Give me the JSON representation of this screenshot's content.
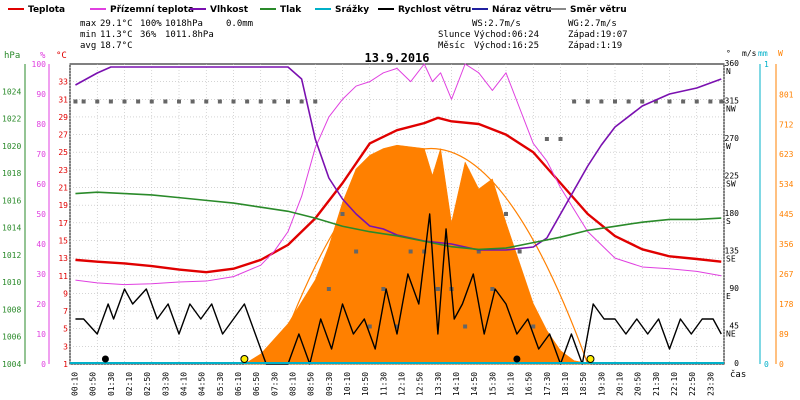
{
  "legend": [
    {
      "label": "Teplota",
      "color": "#e00000"
    },
    {
      "label": "Přízemní teplota",
      "color": "#e040e0"
    },
    {
      "label": "Vlhkost",
      "color": "#7a10b0"
    },
    {
      "label": "Tlak",
      "color": "#2a8a2a"
    },
    {
      "label": "Srážky",
      "color": "#00b0c8"
    },
    {
      "label": "Rychlost větru",
      "color": "#000000"
    },
    {
      "label": "Náraz větru",
      "color": "#2020a0"
    },
    {
      "label": "Směr větru",
      "color": "#888888"
    }
  ],
  "stats": {
    "max_label": "max",
    "max_temp": "29.1°C",
    "max_hum": "100%",
    "max_press": "1018hPa",
    "max_rain": "0.0mm",
    "min_label": "min",
    "min_temp": "11.3°C",
    "min_hum": "36%",
    "min_press": "1011.8hPa",
    "avg_label": "avg",
    "avg_temp": "18.7°C"
  },
  "wind": {
    "ws": "WS:2.7m/s",
    "wg": "WG:2.7m/s"
  },
  "sun": {
    "label": "Slunce",
    "rise": "Východ:06:24",
    "set": "Západ:19:07"
  },
  "moon": {
    "label": "Měsíc",
    "rise": "Východ:16:25",
    "set": "Západ:1:19"
  },
  "chart_data": {
    "type": "line",
    "title": "13.9.2016",
    "xlabel": "čas",
    "x_ticks": [
      "00:10",
      "00:50",
      "01:30",
      "02:10",
      "02:50",
      "03:30",
      "04:10",
      "04:50",
      "05:30",
      "06:10",
      "06:50",
      "07:30",
      "08:10",
      "08:50",
      "09:30",
      "10:10",
      "10:50",
      "11:30",
      "12:10",
      "12:50",
      "13:30",
      "14:10",
      "14:50",
      "15:30",
      "16:10",
      "16:50",
      "17:30",
      "18:10",
      "18:50",
      "19:30",
      "20:10",
      "20:50",
      "21:30",
      "22:10",
      "22:50",
      "23:30"
    ],
    "axes": {
      "pressure": {
        "label": "hPa",
        "ylim": [
          1004,
          1026
        ],
        "ticks": [
          "1004",
          "1006",
          "1008",
          "1010",
          "1012",
          "1014",
          "1016",
          "1018",
          "1020",
          "1022",
          "1024"
        ]
      },
      "humidity": {
        "label": "%",
        "ylim": [
          0,
          100
        ],
        "ticks": [
          "0",
          "10",
          "20",
          "30",
          "40",
          "50",
          "60",
          "70",
          "80",
          "90",
          "100"
        ]
      },
      "temperature": {
        "label": "°C",
        "ylim": [
          1,
          35
        ],
        "ticks": [
          "1",
          "3",
          "5",
          "7",
          "9",
          "11",
          "13",
          "15",
          "17",
          "19",
          "21",
          "23",
          "25",
          "27",
          "29",
          "31",
          "33"
        ]
      },
      "direction": {
        "label": "°",
        "ylim": [
          0,
          360
        ],
        "ticks": [
          "0",
          "45",
          "90",
          "135",
          "180",
          "225",
          "270",
          "315",
          "360"
        ],
        "cardinals": [
          "",
          "NE",
          "E",
          "SE",
          "S",
          "SW",
          "W",
          "NW",
          "N"
        ]
      },
      "wind": {
        "label": "m/s",
        "ylim": [
          0,
          1
        ],
        "ticks": [
          "0",
          "1"
        ]
      },
      "rain": {
        "label": "mm",
        "ticks": [
          "0",
          "1"
        ]
      },
      "solar": {
        "label": "W",
        "ylim": [
          0,
          891
        ],
        "ticks": [
          "0",
          "89",
          "178",
          "267",
          "356",
          "445",
          "534",
          "623",
          "712",
          "801"
        ]
      }
    },
    "series": [
      {
        "name": "Teplota",
        "axis": "temperature",
        "x": [
          0.2,
          1,
          2,
          3,
          4,
          5,
          6,
          7,
          8,
          9,
          10,
          11,
          12,
          13,
          13.5,
          14,
          15,
          16,
          17,
          18,
          19,
          20,
          21,
          22,
          23,
          23.9
        ],
        "values": [
          12.8,
          12.6,
          12.4,
          12.1,
          11.7,
          11.4,
          11.8,
          12.8,
          14.5,
          17.5,
          21.5,
          26,
          27.5,
          28.3,
          28.9,
          28.5,
          28.2,
          27,
          25,
          21.5,
          18,
          15.5,
          14,
          13.2,
          12.9,
          12.6
        ]
      },
      {
        "name": "Přízemní teplota",
        "axis": "temperature",
        "x": [
          0.2,
          1,
          2,
          3,
          4,
          5,
          6,
          7,
          7.5,
          8,
          8.5,
          9,
          9.5,
          10,
          10.5,
          11,
          11.5,
          12,
          12.5,
          13,
          13.3,
          13.6,
          14,
          14.5,
          15,
          15.5,
          16,
          16.5,
          17,
          17.5,
          18,
          18.5,
          19,
          19.5,
          20,
          21,
          22,
          23,
          23.9
        ],
        "values": [
          10.5,
          10.2,
          10,
          10.1,
          10.3,
          10.4,
          10.9,
          12.2,
          13.8,
          16,
          20,
          25.5,
          29,
          31,
          32.5,
          33,
          34,
          34.5,
          33,
          35,
          33,
          34,
          31,
          36,
          34,
          32,
          34,
          30,
          26,
          24,
          21,
          18.5,
          16,
          14.5,
          13,
          12,
          11.8,
          11.5,
          11
        ]
      },
      {
        "name": "Vlhkost",
        "axis": "humidity",
        "x": [
          0.2,
          1,
          1.5,
          2,
          3,
          4,
          5,
          6,
          7,
          8,
          8.5,
          9,
          9.5,
          10,
          10.5,
          11,
          11.5,
          12,
          13,
          14,
          15,
          16,
          17,
          17.5,
          18,
          18.5,
          19,
          19.5,
          20,
          21,
          22,
          23,
          23.9
        ],
        "values": [
          93,
          97,
          99,
          99,
          99,
          99,
          99,
          99,
          99,
          99,
          95,
          75,
          62,
          55,
          50,
          46,
          45,
          43,
          41,
          40,
          38,
          38,
          39,
          42,
          50,
          58,
          66,
          73,
          79,
          86,
          90,
          92,
          95
        ]
      },
      {
        "name": "Tlak",
        "axis": "pressure",
        "x": [
          0.2,
          1,
          2,
          3,
          4,
          5,
          6,
          7,
          8,
          9,
          10,
          11,
          12,
          13,
          14,
          15,
          16,
          17,
          18,
          19,
          20,
          21,
          22,
          23,
          23.9
        ],
        "values": [
          1016.5,
          1016.6,
          1016.5,
          1016.4,
          1016.2,
          1016,
          1015.8,
          1015.5,
          1015.2,
          1014.7,
          1014.1,
          1013.7,
          1013.4,
          1013,
          1012.6,
          1012.4,
          1012.5,
          1012.9,
          1013.3,
          1013.8,
          1014.1,
          1014.4,
          1014.6,
          1014.6,
          1014.7
        ]
      },
      {
        "name": "Rychlost větru",
        "axis": "wind",
        "x": [
          0.2,
          0.5,
          1,
          1.4,
          1.6,
          2,
          2.3,
          2.8,
          3.2,
          3.6,
          4,
          4.4,
          4.8,
          5.2,
          5.6,
          6,
          6.4,
          6.8,
          7.2,
          7.6,
          8,
          8.4,
          8.8,
          9.2,
          9.6,
          10,
          10.4,
          10.8,
          11.2,
          11.6,
          12,
          12.4,
          12.8,
          13.2,
          13.5,
          13.8,
          14.1,
          14.4,
          14.8,
          15.2,
          15.6,
          16,
          16.4,
          16.8,
          17.2,
          17.6,
          18,
          18.4,
          18.8,
          19.2,
          19.6,
          20,
          20.4,
          20.8,
          21.2,
          21.6,
          22,
          22.4,
          22.8,
          23.2,
          23.6,
          23.9
        ],
        "values": [
          0.15,
          0.15,
          0.1,
          0.2,
          0.15,
          0.25,
          0.2,
          0.25,
          0.15,
          0.2,
          0.1,
          0.2,
          0.15,
          0.2,
          0.1,
          0.15,
          0.2,
          0.1,
          0,
          0,
          0,
          0.1,
          0,
          0.15,
          0.05,
          0.2,
          0.1,
          0.15,
          0.05,
          0.25,
          0.1,
          0.3,
          0.2,
          0.5,
          0.1,
          0.45,
          0.15,
          0.2,
          0.3,
          0.1,
          0.25,
          0.2,
          0.1,
          0.15,
          0.05,
          0.1,
          0,
          0.1,
          0,
          0.2,
          0.15,
          0.15,
          0.1,
          0.15,
          0.1,
          0.15,
          0.05,
          0.15,
          0.1,
          0.15,
          0.15,
          0.1
        ]
      },
      {
        "name": "Solar",
        "axis": "solar",
        "x": [
          6.4,
          7,
          8,
          9,
          9.5,
          10,
          10.5,
          11,
          11.5,
          12,
          12.5,
          13,
          13.3,
          13.6,
          14,
          14.5,
          15,
          15.5,
          16,
          16.5,
          17,
          17.5,
          18,
          18.5,
          19.1
        ],
        "values": [
          0,
          30,
          120,
          250,
          350,
          480,
          580,
          620,
          640,
          650,
          645,
          640,
          560,
          640,
          420,
          600,
          520,
          550,
          420,
          300,
          180,
          100,
          40,
          10,
          0
        ]
      }
    ],
    "wind_direction": {
      "axis": "direction",
      "x": [
        0.2,
        0.5,
        1,
        1.5,
        2,
        2.5,
        3,
        3.5,
        4,
        4.5,
        5,
        5.5,
        6,
        6.5,
        7,
        7.5,
        8,
        8.5,
        9,
        9.5,
        10,
        10.5,
        11,
        11.5,
        12,
        12.5,
        13,
        13.5,
        14,
        14.5,
        15,
        15.5,
        16,
        16.5,
        17,
        17.5,
        18,
        18.5,
        19,
        19.5,
        20,
        20.5,
        21,
        21.5,
        22,
        22.5,
        23,
        23.5,
        23.9
      ],
      "values": [
        315,
        315,
        315,
        315,
        315,
        315,
        315,
        315,
        315,
        315,
        315,
        315,
        315,
        315,
        315,
        315,
        315,
        315,
        315,
        90,
        180,
        135,
        45,
        90,
        45,
        135,
        135,
        90,
        90,
        45,
        135,
        90,
        180,
        135,
        45,
        270,
        270,
        315,
        315,
        315,
        315,
        315,
        315,
        315,
        315,
        315,
        315,
        315,
        315
      ]
    }
  }
}
